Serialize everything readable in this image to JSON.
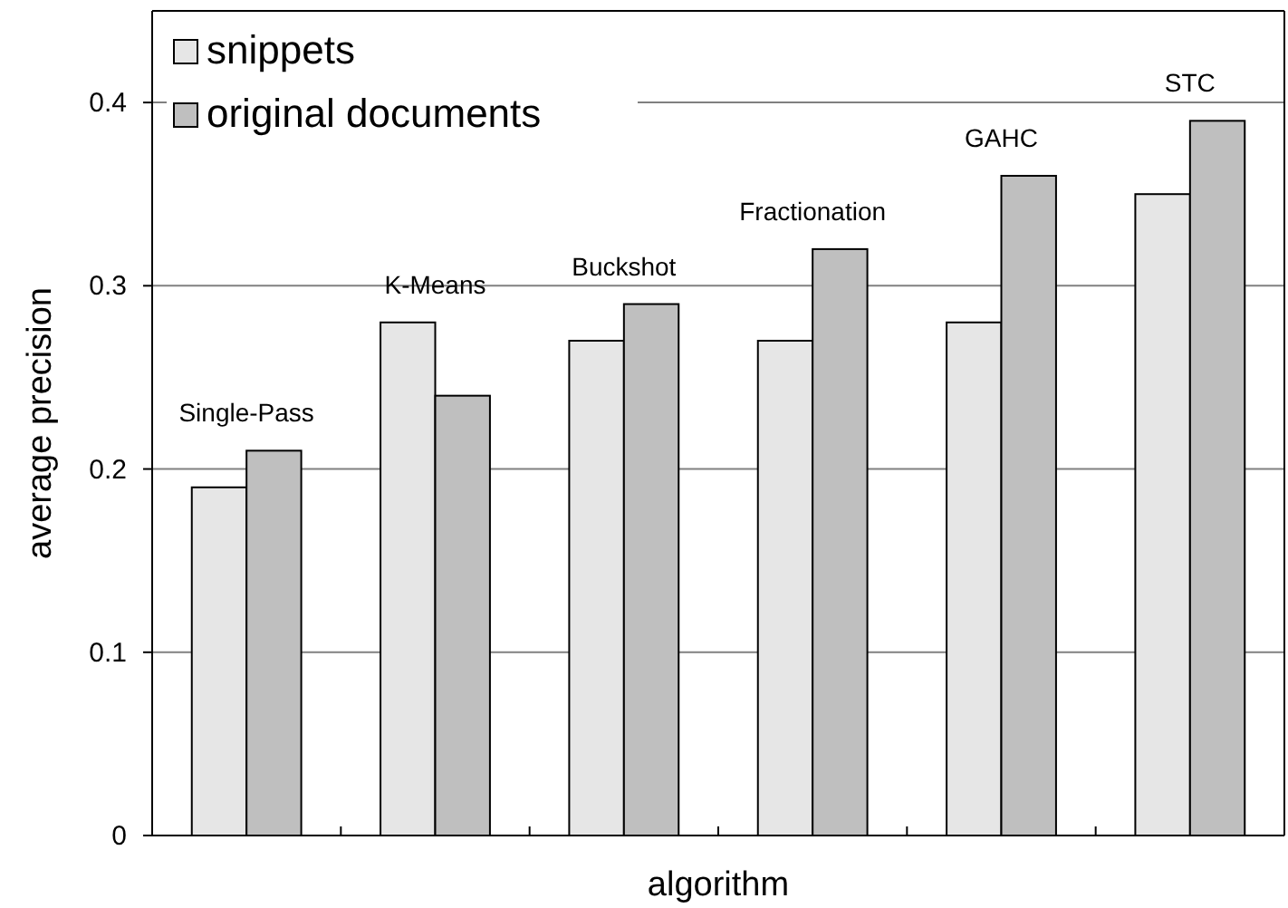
{
  "chart_data": {
    "type": "bar",
    "xlabel": "algorithm",
    "ylabel": "average precision",
    "categories": [
      "Single-Pass",
      "K-Means",
      "Buckshot",
      "Fractionation",
      "GAHC",
      "STC"
    ],
    "series": [
      {
        "name": "snippets",
        "color": "#e6e6e6",
        "values": [
          0.19,
          0.28,
          0.27,
          0.27,
          0.28,
          0.35
        ]
      },
      {
        "name": "original documents",
        "color": "#bfbfbf",
        "values": [
          0.21,
          0.24,
          0.29,
          0.32,
          0.36,
          0.39
        ]
      }
    ],
    "ylim": [
      0,
      0.45
    ],
    "yticks": [
      0,
      0.1,
      0.2,
      0.3,
      0.4
    ],
    "grid": "y",
    "legend": "top left"
  }
}
